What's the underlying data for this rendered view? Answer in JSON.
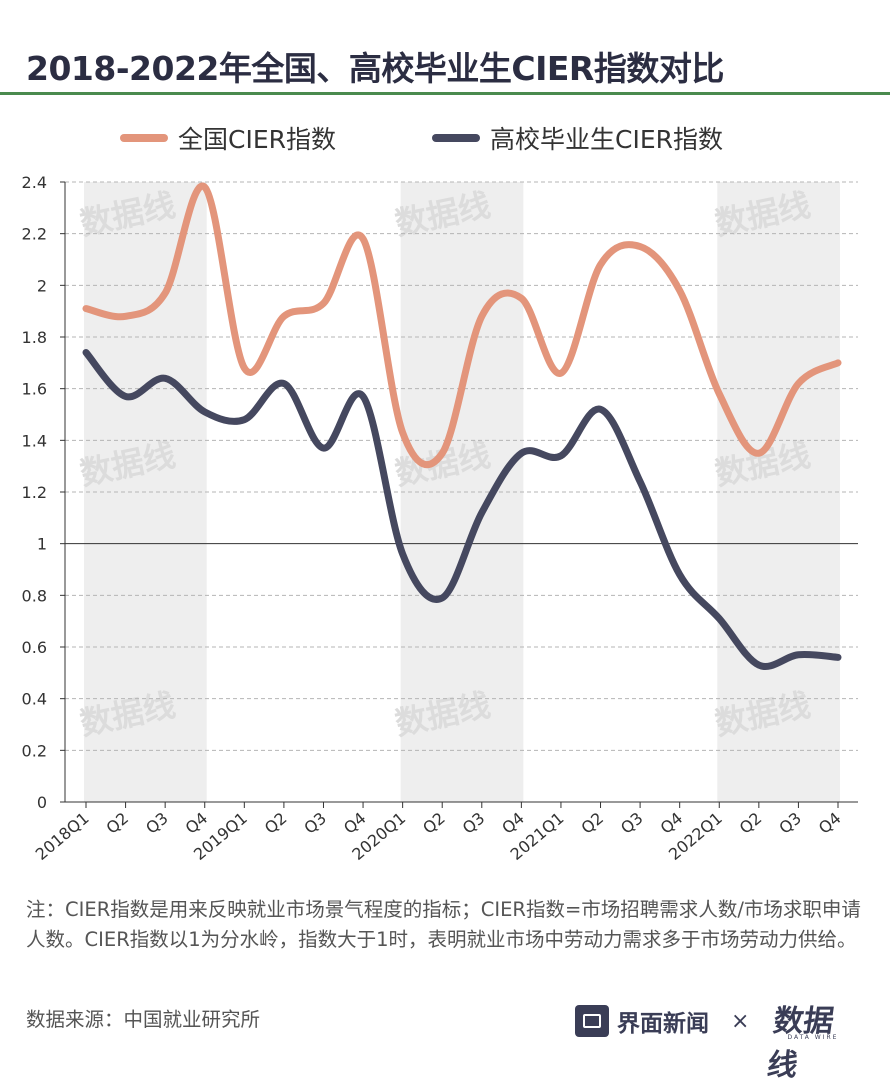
{
  "title": "2018-2022年全国、高校毕业生CIER指数对比",
  "legend": {
    "national": "全国CIER指数",
    "graduates": "高校毕业生CIER指数"
  },
  "colors": {
    "national": "#e3957b",
    "graduates": "#45485f",
    "band": "#eeeeee",
    "title_rule": "#4a8a4e"
  },
  "note": "注：CIER指数是用来反映就业市场景气程度的指标；CIER指数=市场招聘需求人数/市场求职申请人数。CIER指数以1为分水岭，指数大于1时，表明就业市场中劳动力需求多于市场劳动力供给。",
  "source": "数据来源：中国就业研究所",
  "brand": {
    "name": "界面新闻",
    "times": "×",
    "wire": "数据线",
    "wire_sub": "DATA WIRE"
  },
  "watermark": "数据线",
  "chart_data": {
    "type": "line",
    "categories": [
      "2018Q1",
      "Q2",
      "Q3",
      "Q4",
      "2019Q1",
      "Q2",
      "Q3",
      "Q4",
      "2020Q1",
      "Q2",
      "Q3",
      "Q4",
      "2021Q1",
      "Q2",
      "Q3",
      "Q4",
      "2022Q1",
      "Q2",
      "Q3",
      "Q4"
    ],
    "series": [
      {
        "name": "全国CIER指数",
        "color": "#e3957b",
        "values": [
          1.91,
          1.88,
          1.97,
          2.38,
          1.68,
          1.88,
          1.93,
          2.18,
          1.43,
          1.35,
          1.88,
          1.95,
          1.66,
          2.08,
          2.15,
          1.98,
          1.58,
          1.35,
          1.62,
          1.7
        ]
      },
      {
        "name": "高校毕业生CIER指数",
        "color": "#45485f",
        "values": [
          1.74,
          1.57,
          1.64,
          1.51,
          1.48,
          1.62,
          1.37,
          1.57,
          0.96,
          0.79,
          1.12,
          1.35,
          1.34,
          1.52,
          1.24,
          0.88,
          0.71,
          0.53,
          0.57,
          0.56
        ]
      }
    ],
    "yticks": [
      "0",
      "0.2",
      "0.4",
      "0.6",
      "0.8",
      "1",
      "1.2",
      "1.4",
      "1.6",
      "1.8",
      "2",
      "2.2",
      "2.4"
    ],
    "ylim": [
      0,
      2.4
    ],
    "reference_line": 1,
    "grid": true,
    "shaded_years": [
      "2018",
      "2020",
      "2022"
    ]
  }
}
